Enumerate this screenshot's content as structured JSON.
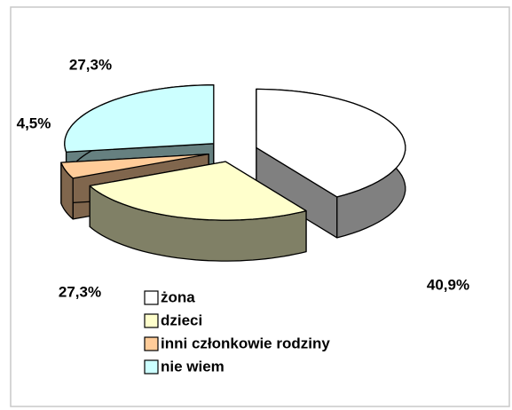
{
  "chart_data": {
    "type": "pie",
    "categories": [
      "żona",
      "dzieci",
      "inni członkowie rodziny",
      "nie wiem"
    ],
    "values": [
      40.9,
      27.3,
      4.5,
      27.3
    ],
    "value_labels": [
      "40,9%",
      "27,3%",
      "4,5%",
      "27,3%"
    ],
    "colors": [
      "#ffffff",
      "#ffffcc",
      "#ffcc99",
      "#ccffff"
    ],
    "legend": "bottom"
  }
}
